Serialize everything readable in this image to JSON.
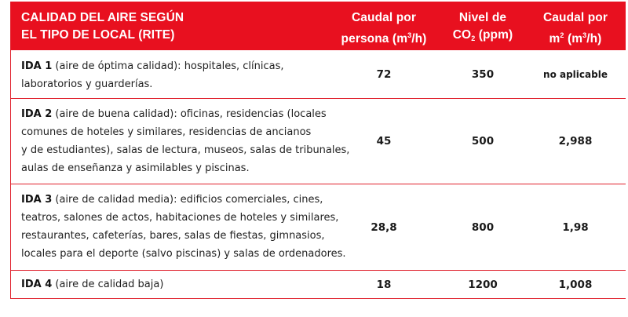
{
  "header": {
    "title_line1": "CALIDAD DEL AIRE SEGÚN",
    "title_line2": "EL TIPO DE LOCAL (RITE)",
    "col1_line1": "Caudal por",
    "col1_line2_a": "persona (m",
    "col1_line2_sup": "3",
    "col1_line2_b": "/h)",
    "col2_line1": "Nivel de",
    "col2_line2_a": "CO",
    "col2_line2_sub": "2",
    "col2_line2_b": " (ppm)",
    "col3_line1": "Caudal por",
    "col3_line2_a": "m",
    "col3_line2_sup1": "2",
    "col3_line2_b": " (m",
    "col3_line2_sup2": "3",
    "col3_line2_c": "/h)"
  },
  "rows": [
    {
      "label": "IDA 1",
      "lines": [
        " (aire de óptima calidad): hospitales, clínicas,",
        "laboratorios y guarderías."
      ],
      "flow_per_person": "72",
      "co2_level": "350",
      "flow_per_m2": "no aplicable"
    },
    {
      "label": "IDA 2",
      "lines": [
        " (aire de buena calidad): oficinas, residencias (locales",
        "comunes de hoteles y similares, residencias de ancianos",
        "y de estudiantes), salas de lectura, museos, salas de tribunales,",
        "aulas de enseñanza y asimilables y piscinas."
      ],
      "flow_per_person": "45",
      "co2_level": "500",
      "flow_per_m2": "2,988"
    },
    {
      "label": "IDA 3",
      "lines": [
        " (aire de calidad media): edificios comerciales, cines,",
        "teatros, salones de actos, habitaciones de hoteles y similares,",
        "restaurantes, cafeterías, bares, salas de fiestas, gimnasios,",
        "locales para el deporte (salvo piscinas) y salas de ordenadores."
      ],
      "flow_per_person": "28,8",
      "co2_level": "800",
      "flow_per_m2": "1,98"
    },
    {
      "label": "IDA 4",
      "lines": [
        " (aire de calidad baja)"
      ],
      "flow_per_person": "18",
      "co2_level": "1200",
      "flow_per_m2": "1,008"
    }
  ],
  "colors": {
    "header_bg": "#e8101f",
    "border": "#e0212d",
    "header_text": "#ffffff"
  }
}
